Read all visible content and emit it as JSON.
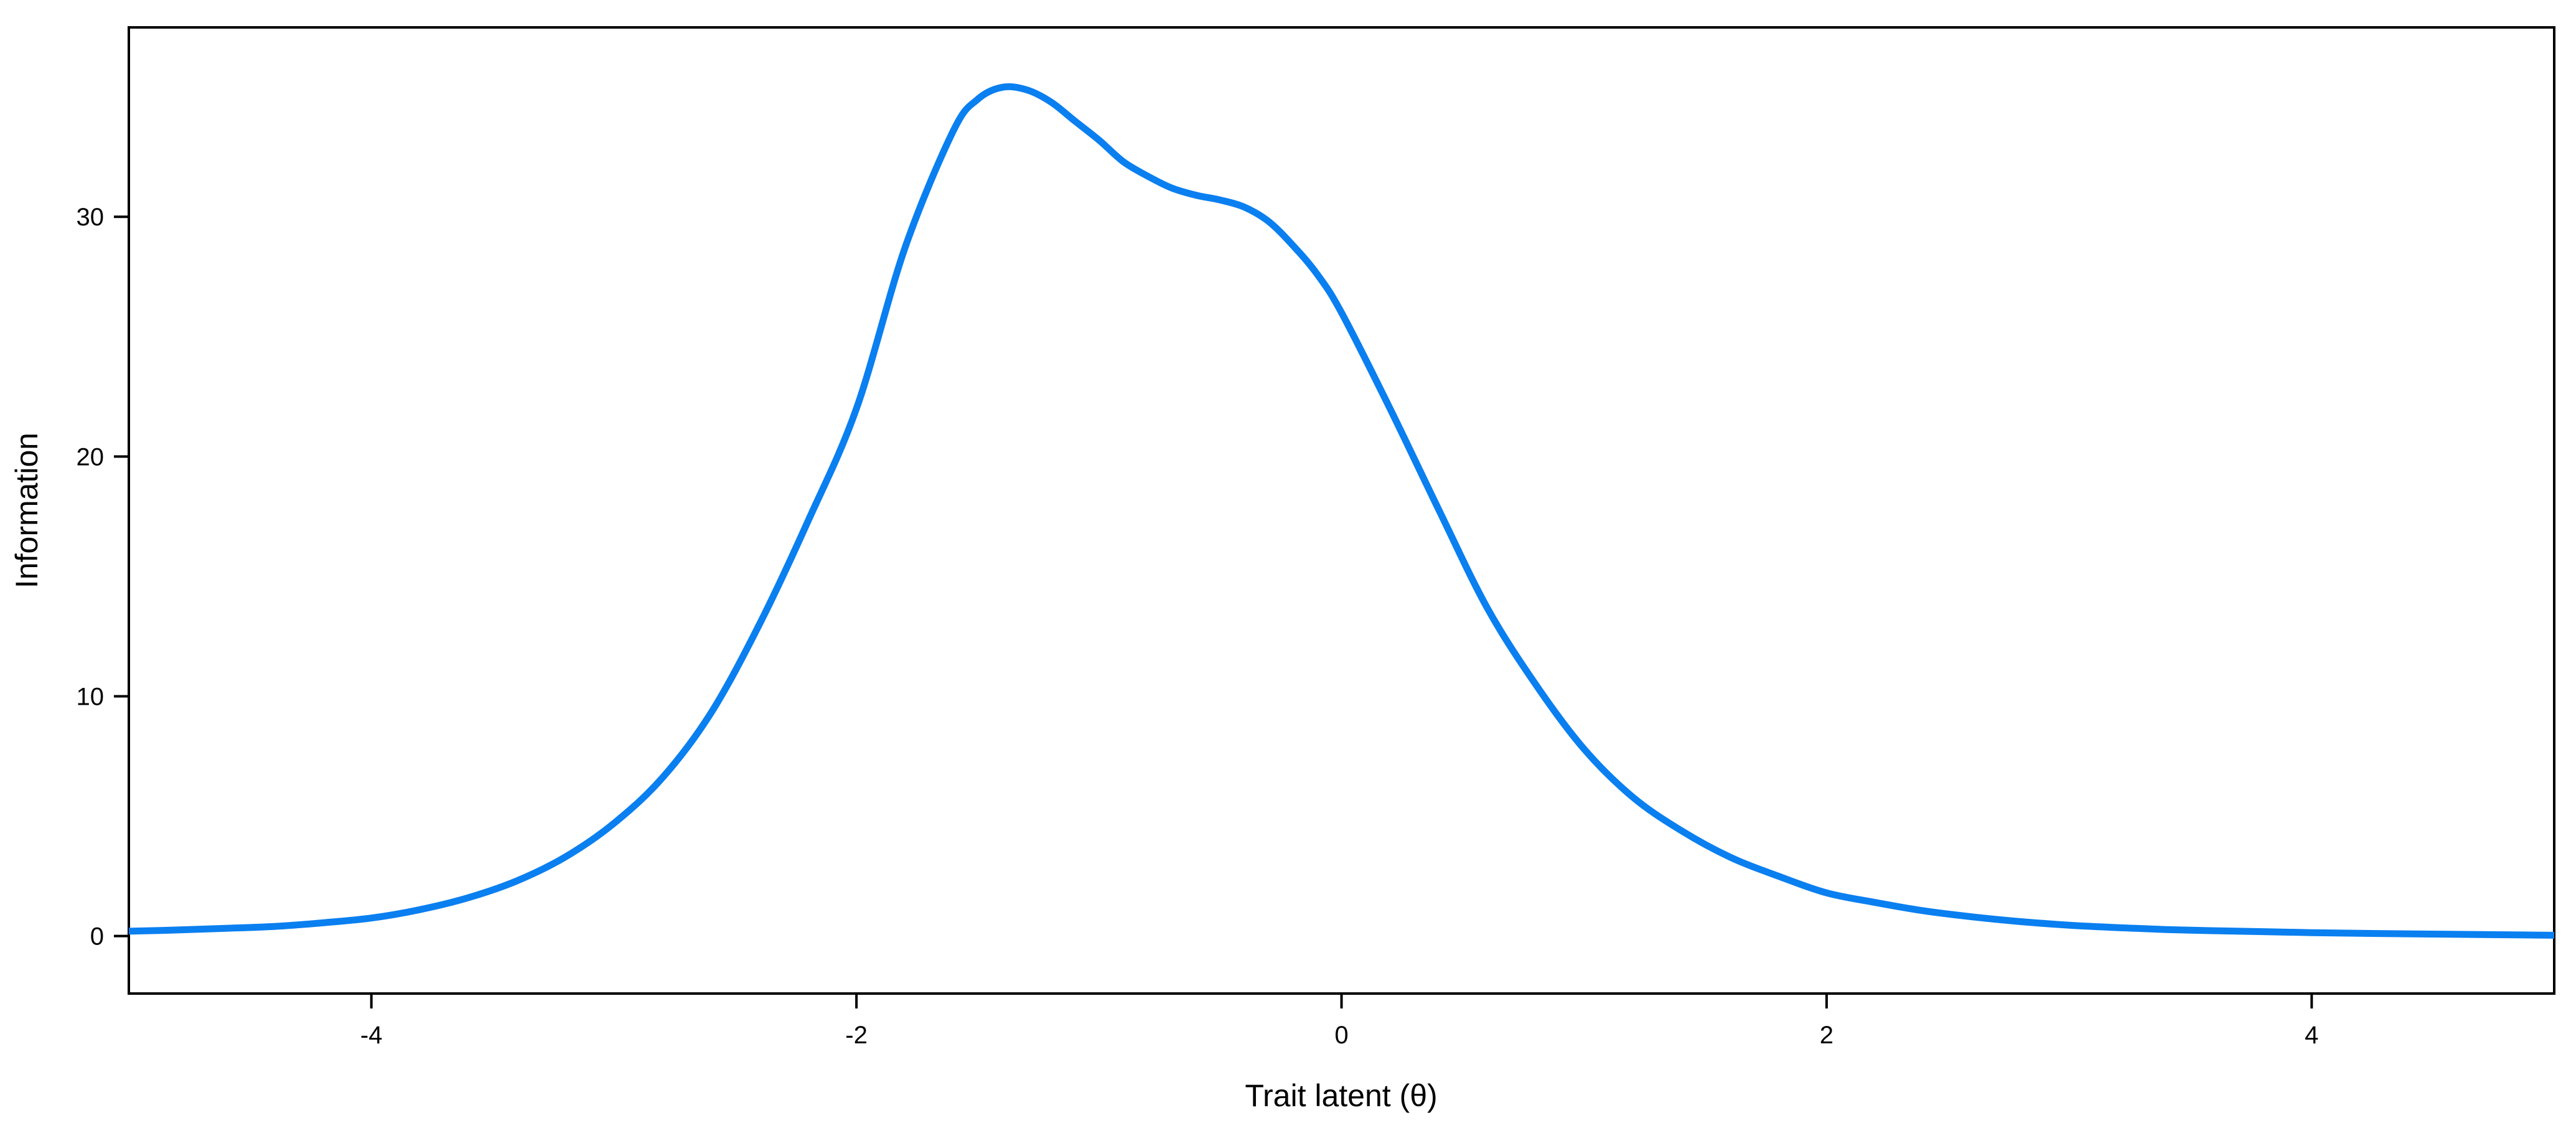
{
  "chart_data": {
    "type": "line",
    "title": "",
    "xlabel": "Trait latent (θ)",
    "ylabel": "Information",
    "xlim": [
      -5,
      5
    ],
    "ylim": [
      -2.4,
      37.9
    ],
    "x_ticks": [
      -4,
      -2,
      0,
      2,
      4
    ],
    "y_ticks": [
      0,
      10,
      20,
      30
    ],
    "grid": false,
    "legend": "none",
    "line_color": "#0a7ff0",
    "series": [
      {
        "x": [
          -5.0,
          -4.8,
          -4.6,
          -4.4,
          -4.2,
          -4.0,
          -3.8,
          -3.6,
          -3.4,
          -3.2,
          -3.0,
          -2.8,
          -2.6,
          -2.4,
          -2.2,
          -2.0,
          -1.8,
          -1.6,
          -1.5,
          -1.4,
          -1.3,
          -1.2,
          -1.1,
          -1.0,
          -0.9,
          -0.8,
          -0.7,
          -0.6,
          -0.5,
          -0.4,
          -0.3,
          -0.2,
          -0.1,
          0.0,
          0.2,
          0.4,
          0.6,
          0.8,
          1.0,
          1.2,
          1.4,
          1.6,
          1.8,
          2.0,
          2.2,
          2.4,
          2.6,
          2.8,
          3.0,
          3.2,
          3.4,
          3.6,
          3.8,
          4.0,
          4.2,
          4.4,
          4.6,
          4.8,
          5.0
        ],
        "y": [
          0.2,
          0.25,
          0.32,
          0.4,
          0.55,
          0.75,
          1.1,
          1.6,
          2.3,
          3.3,
          4.7,
          6.6,
          9.3,
          13.0,
          17.3,
          22.0,
          28.7,
          33.6,
          34.9,
          35.4,
          35.3,
          34.8,
          34.0,
          33.2,
          32.3,
          31.7,
          31.2,
          30.9,
          30.7,
          30.4,
          29.8,
          28.8,
          27.6,
          26.0,
          22.0,
          17.8,
          13.7,
          10.5,
          7.8,
          5.8,
          4.4,
          3.3,
          2.5,
          1.8,
          1.4,
          1.05,
          0.8,
          0.6,
          0.45,
          0.35,
          0.27,
          0.22,
          0.18,
          0.14,
          0.11,
          0.09,
          0.07,
          0.05,
          0.03
        ]
      }
    ]
  }
}
